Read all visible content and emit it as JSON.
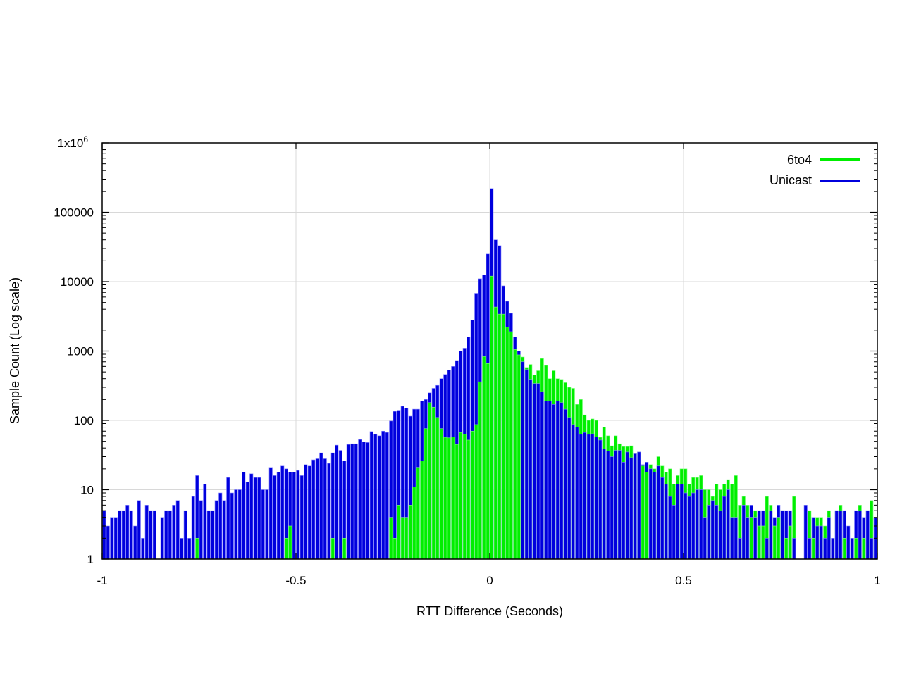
{
  "chart_data": {
    "type": "bar",
    "title": "",
    "xlabel": "RTT Difference (Seconds)",
    "ylabel": "Sample Count (Log scale)",
    "xlim": [
      -1,
      1
    ],
    "ylim": [
      1,
      1000000
    ],
    "yscale": "log",
    "grid": true,
    "legend_position": "top-right",
    "bin_width": 0.01,
    "x_ticks": [
      "-1",
      "-0.5",
      "0",
      "0.5",
      "1"
    ],
    "x_tick_values": [
      -1,
      -0.5,
      0,
      0.5,
      1
    ],
    "y_ticks": [
      "1",
      "10",
      "100",
      "1000",
      "10000",
      "100000",
      "1x10"
    ],
    "y_tick_top_exponent": "6",
    "y_tick_values": [
      1,
      10,
      100,
      1000,
      10000,
      100000,
      1000000
    ],
    "series": [
      {
        "name": "6to4",
        "color": "#00ee00",
        "values": [
          0,
          0,
          0,
          0,
          0,
          0,
          0,
          0,
          0,
          0,
          0,
          0,
          0,
          0,
          0,
          0,
          0,
          0,
          0,
          0,
          0,
          0,
          0,
          0,
          2,
          0,
          0,
          0,
          0,
          0,
          0,
          0,
          0,
          0,
          0,
          0,
          0,
          0,
          0,
          0,
          0,
          0,
          0,
          0,
          0,
          0,
          0,
          2,
          3,
          0,
          0,
          0,
          0,
          0,
          0,
          0,
          0,
          0,
          0,
          2,
          0,
          0,
          2,
          0,
          0,
          0,
          0,
          0,
          0,
          0,
          0,
          0,
          0,
          0,
          4,
          2,
          6,
          4,
          4,
          6,
          11,
          21,
          26,
          76,
          180,
          155,
          110,
          76,
          57,
          56,
          58,
          45,
          67,
          63,
          52,
          70,
          87,
          360,
          830,
          660,
          12000,
          4300,
          3400,
          3400,
          2200,
          1900,
          1050,
          880,
          820,
          580,
          640,
          450,
          520,
          780,
          620,
          400,
          520,
          400,
          390,
          350,
          300,
          290,
          170,
          200,
          120,
          100,
          105,
          100,
          57,
          80,
          60,
          43,
          60,
          46,
          42,
          42,
          43,
          33,
          35,
          22,
          18,
          23,
          20,
          30,
          22,
          18,
          20,
          12,
          16,
          20,
          20,
          12,
          15,
          15,
          16,
          10,
          10,
          8,
          12,
          10,
          12,
          14,
          12,
          16,
          6,
          8,
          6,
          4,
          5,
          3,
          3,
          8,
          6,
          3,
          4,
          5,
          2,
          3,
          8,
          0,
          0,
          0,
          5,
          2,
          4,
          4,
          3,
          5,
          0,
          5,
          6,
          2,
          0,
          0,
          2,
          6,
          2,
          5,
          7,
          0
        ]
      },
      {
        "name": "Unicast",
        "color": "#0000dd",
        "values": [
          5,
          3,
          4,
          4,
          5,
          5,
          6,
          5,
          3,
          7,
          2,
          6,
          5,
          5,
          0,
          4,
          5,
          5,
          6,
          7,
          2,
          5,
          2,
          8,
          16,
          7,
          12,
          5,
          5,
          7,
          9,
          7,
          15,
          9,
          10,
          10,
          18,
          13,
          17,
          15,
          15,
          10,
          10,
          21,
          16,
          18,
          22,
          20,
          18,
          18,
          19,
          16,
          23,
          22,
          27,
          28,
          34,
          28,
          24,
          34,
          44,
          37,
          26,
          45,
          46,
          46,
          53,
          49,
          48,
          69,
          63,
          60,
          70,
          67,
          98,
          135,
          140,
          160,
          150,
          115,
          145,
          145,
          190,
          200,
          250,
          290,
          320,
          400,
          460,
          530,
          600,
          730,
          1000,
          1100,
          1600,
          2800,
          6800,
          11000,
          12500,
          25000,
          220000,
          40000,
          33000,
          8700,
          5200,
          3500,
          1600,
          1000,
          700,
          540,
          390,
          340,
          340,
          260,
          190,
          190,
          170,
          190,
          180,
          145,
          110,
          87,
          80,
          63,
          67,
          63,
          64,
          58,
          52,
          39,
          36,
          30,
          37,
          37,
          25,
          35,
          29,
          33,
          35,
          23,
          25,
          20,
          18,
          22,
          15,
          12,
          8,
          6,
          12,
          12,
          9,
          8,
          9,
          10,
          10,
          4,
          6,
          7,
          6,
          5,
          8,
          10,
          4,
          4,
          2,
          6,
          4,
          6,
          4,
          5,
          5,
          2,
          5,
          4,
          6,
          5,
          5,
          5,
          2,
          0,
          0,
          6,
          2,
          4,
          3,
          3,
          2,
          4,
          2,
          5,
          5,
          5,
          3,
          2,
          5,
          5,
          4,
          5,
          2,
          4
        ]
      }
    ]
  }
}
